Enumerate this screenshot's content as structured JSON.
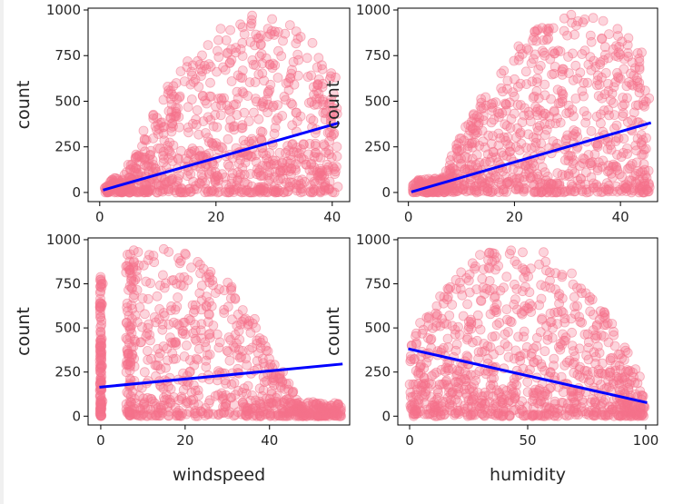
{
  "figure": {
    "background": "#ffffff"
  },
  "style": {
    "point_color": "#f4728a",
    "point_alpha": 0.3,
    "line_color": "#0000ff"
  },
  "chart_data": [
    {
      "type": "scatter",
      "title": "",
      "xlabel": "",
      "ylabel": "count",
      "xlim": [
        -2,
        43
      ],
      "ylim": [
        -50,
        1010
      ],
      "xticks": [
        0,
        20,
        40
      ],
      "yticks": [
        0,
        250,
        500,
        750,
        1000
      ],
      "cloud": {
        "x_min": 0.8,
        "x_max": 41,
        "x_center": 27,
        "peak": 977
      },
      "regression": {
        "x": [
          0.8,
          41
        ],
        "y": [
          15,
          380
        ]
      },
      "grid": false
    },
    {
      "type": "scatter",
      "title": "",
      "xlabel": "",
      "ylabel": "count",
      "xlim": [
        -2,
        47
      ],
      "ylim": [
        -50,
        1010
      ],
      "xticks": [
        0,
        20,
        40
      ],
      "yticks": [
        0,
        250,
        500,
        750,
        1000
      ],
      "cloud": {
        "x_min": 0.8,
        "x_max": 45.5,
        "x_center": 32,
        "peak": 977
      },
      "regression": {
        "x": [
          0.8,
          45.5
        ],
        "y": [
          5,
          380
        ]
      },
      "grid": false
    },
    {
      "type": "scatter",
      "title": "",
      "xlabel": "windspeed",
      "ylabel": "count",
      "xlim": [
        -3,
        59
      ],
      "ylim": [
        -50,
        1010
      ],
      "xticks": [
        0,
        20,
        40
      ],
      "yticks": [
        0,
        250,
        500,
        750,
        1000
      ],
      "cloud": {
        "x_min": 0,
        "x_max": 57,
        "x_center": 14,
        "peak": 977,
        "zero_column": true,
        "gap": [
          0.5,
          6
        ]
      },
      "regression": {
        "x": [
          0,
          57
        ],
        "y": [
          165,
          295
        ]
      },
      "grid": false
    },
    {
      "type": "scatter",
      "title": "",
      "xlabel": "humidity",
      "ylabel": "count",
      "xlim": [
        -5,
        105
      ],
      "ylim": [
        -50,
        1010
      ],
      "xticks": [
        0,
        50,
        100
      ],
      "yticks": [
        0,
        250,
        500,
        750,
        1000
      ],
      "cloud": {
        "x_min": 0,
        "x_max": 100,
        "x_center": 45,
        "peak": 977
      },
      "regression": {
        "x": [
          0,
          100
        ],
        "y": [
          380,
          78
        ]
      },
      "grid": false
    }
  ]
}
